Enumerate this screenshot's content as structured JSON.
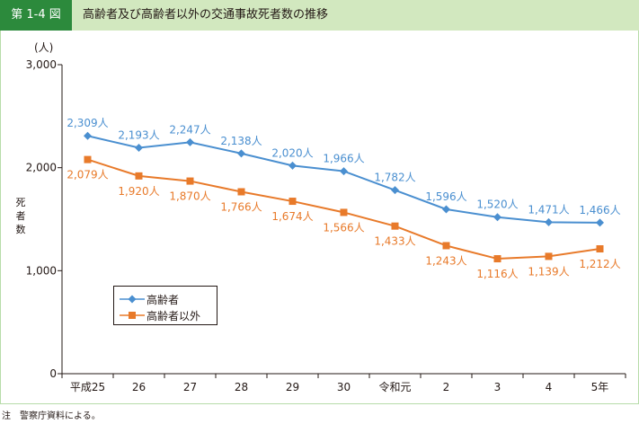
{
  "header": {
    "fig_no": "第 1-4 図",
    "title": "高齢者及び高齢者以外の交通事故死者数の推移"
  },
  "unit": "(人)",
  "ylabel": "死者数",
  "note": "注　警察庁資料による。",
  "chart_data": {
    "type": "line",
    "categories": [
      "平成25",
      "26",
      "27",
      "28",
      "29",
      "30",
      "令和元",
      "2",
      "3",
      "4",
      "5年"
    ],
    "series": [
      {
        "name": "高齢者",
        "color": "#4a8fd0",
        "marker": "diamond",
        "values": [
          2309,
          2193,
          2247,
          2138,
          2020,
          1966,
          1782,
          1596,
          1520,
          1471,
          1466
        ],
        "labels": [
          "2,309人",
          "2,193人",
          "2,247人",
          "2,138人",
          "2,020人",
          "1,966人",
          "1,782人",
          "1,596人",
          "1,520人",
          "1,471人",
          "1,466人"
        ]
      },
      {
        "name": "高齢者以外",
        "color": "#e87a2a",
        "marker": "square",
        "values": [
          2079,
          1920,
          1870,
          1766,
          1674,
          1566,
          1433,
          1243,
          1116,
          1139,
          1212
        ],
        "labels": [
          "2,079人",
          "1,920人",
          "1,870人",
          "1,766人",
          "1,674人",
          "1,566人",
          "1,433人",
          "1,243人",
          "1,116人",
          "1,139人",
          "1,212人"
        ]
      }
    ],
    "ylim": [
      0,
      3000
    ],
    "yticks": [
      0,
      1000,
      2000,
      3000
    ],
    "ytick_labels": [
      "0",
      "1,000",
      "2,000",
      "3,000"
    ],
    "grid": false,
    "legend_position": "lower-left"
  }
}
